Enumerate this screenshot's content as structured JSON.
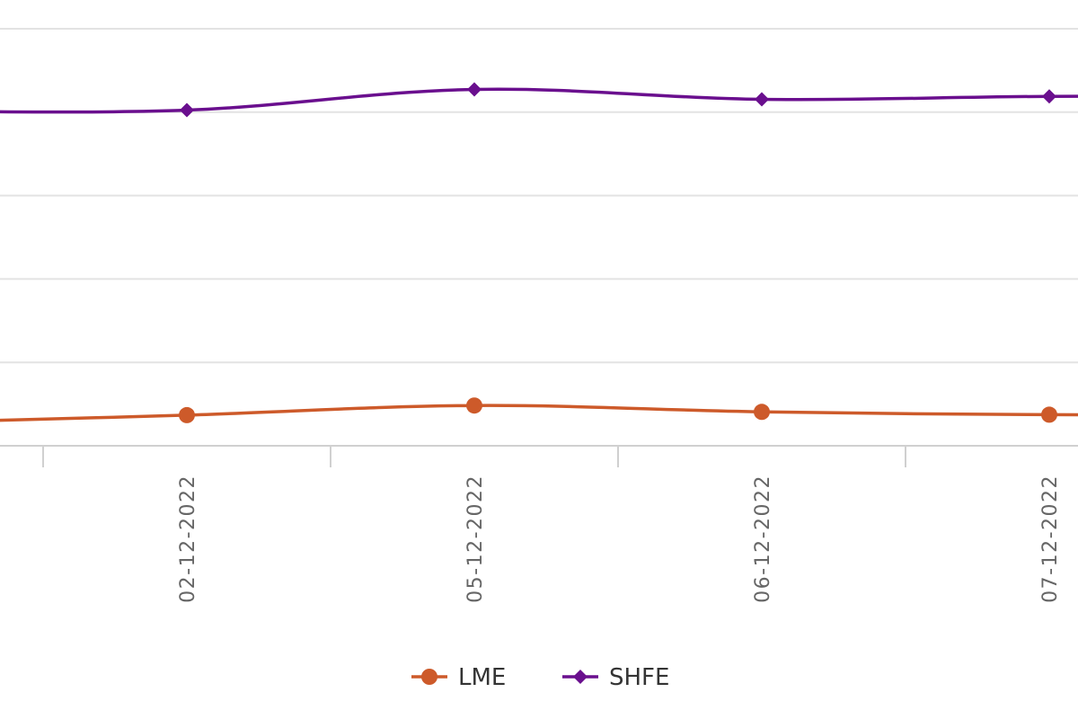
{
  "chart_data": {
    "type": "line",
    "x": [
      "02-12-2022",
      "05-12-2022",
      "06-12-2022",
      "07-12-2022"
    ],
    "series": [
      {
        "name": "LME",
        "color": "#cd5a2a",
        "marker": "circle",
        "values": [
          57.2,
          65.7,
          60.1,
          57.6
        ]
      },
      {
        "name": "SHFE",
        "color": "#6a0f8e",
        "marker": "diamond",
        "values": [
          327.8,
          346.2,
          337.4,
          340.0
        ]
      }
    ],
    "ylim": [
      30,
      400
    ],
    "grid": true,
    "legend_position": "bottom-center"
  }
}
